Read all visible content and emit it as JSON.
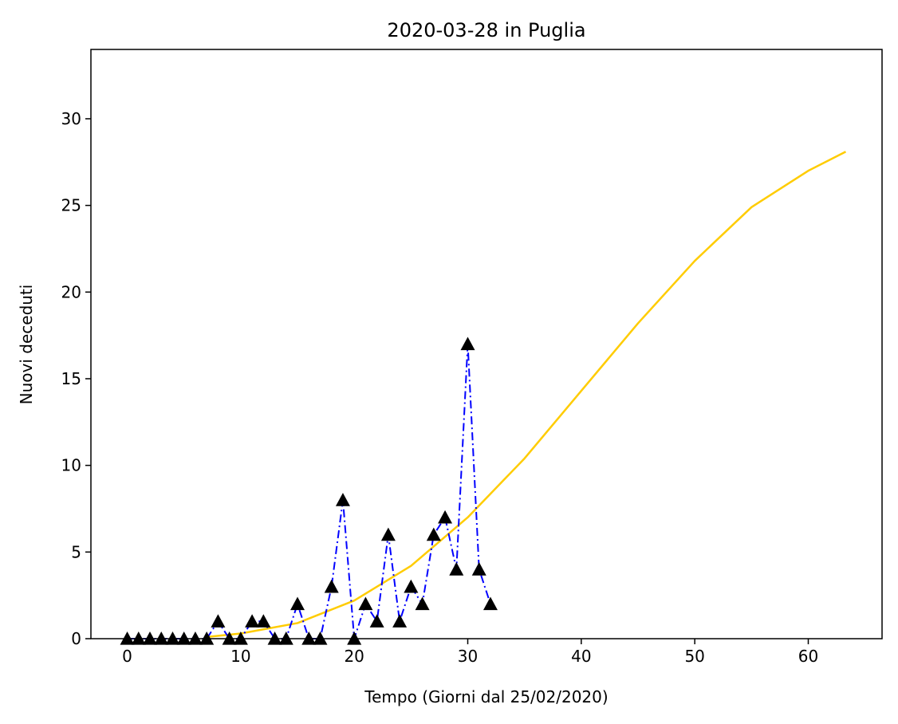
{
  "chart_data": {
    "type": "line",
    "title": "2020-03-28 in Puglia",
    "xlabel": "Tempo (Giorni dal 25/02/2020)",
    "ylabel": "Nuovi deceduti",
    "xlim": [
      -3.2,
      66.5
    ],
    "ylim": [
      0,
      34
    ],
    "xticks": [
      0,
      10,
      20,
      30,
      40,
      50,
      60
    ],
    "yticks": [
      0,
      5,
      10,
      15,
      20,
      25,
      30
    ],
    "grid": false,
    "series": [
      {
        "style": "markers-dashdot",
        "color": "#0000ff",
        "marker_color": "#000000",
        "x": [
          0,
          1,
          2,
          3,
          4,
          5,
          6,
          7,
          8,
          9,
          10,
          11,
          12,
          13,
          14,
          15,
          16,
          17,
          18,
          19,
          20,
          21,
          22,
          23,
          24,
          25,
          26,
          27,
          28,
          29,
          30,
          31,
          32
        ],
        "y": [
          0,
          0,
          0,
          0,
          0,
          0,
          0,
          0,
          1,
          0,
          0,
          1,
          1,
          0,
          0,
          2,
          0,
          0,
          3,
          8,
          0,
          2,
          1,
          6,
          1,
          3,
          2,
          6,
          7,
          4,
          17,
          4,
          2
        ]
      },
      {
        "style": "curve",
        "color": "#ffcc00",
        "x": [
          7,
          10,
          15,
          20,
          25,
          30,
          35,
          40,
          45,
          50,
          55,
          60,
          63.3
        ],
        "y": [
          0.1,
          0.3,
          0.9,
          2.2,
          4.2,
          7.0,
          10.4,
          14.3,
          18.2,
          21.8,
          24.9,
          27.0,
          28.1
        ]
      }
    ]
  }
}
